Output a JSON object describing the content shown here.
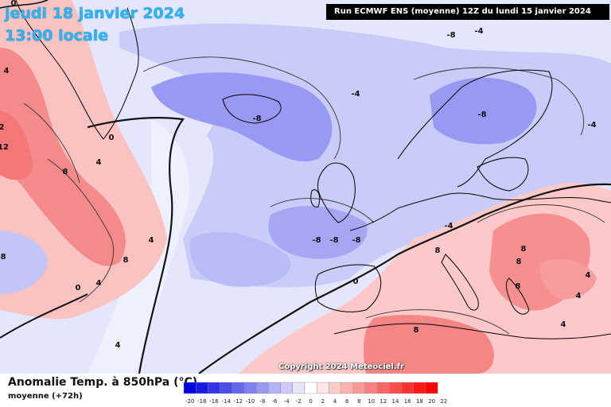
{
  "title": {
    "date": "jeudi 18 janvier 2024",
    "local_time": "13:00 locale"
  },
  "run_info": "Run ECMWF ENS (moyenne) 12Z du lundi 15 janvier 2024",
  "copyright": "Copyright 2024 Meteociel.fr",
  "legend": {
    "title": "Anomalie Temp. à 850hPa (°C)",
    "subtitle": "moyenne  (+72h)",
    "ticks": [
      "-20",
      "-18",
      "-16",
      "-14",
      "-12",
      "-10",
      "-8",
      "-6",
      "-4",
      "-2",
      "0",
      "2",
      "4",
      "6",
      "8",
      "10",
      "12",
      "14",
      "16",
      "18",
      "20",
      "22"
    ],
    "colors": [
      "#0000e0",
      "#1a1ae6",
      "#3333ea",
      "#4d4dee",
      "#6666f0",
      "#7f7ff2",
      "#9999f5",
      "#b3b3f8",
      "#ccccfa",
      "#e6e6fd",
      "#ffffff",
      "#ffe6e6",
      "#ffcccc",
      "#ffb3b3",
      "#ff9999",
      "#ff8080",
      "#ff6666",
      "#ff4d4d",
      "#ff3333",
      "#ff1a1a",
      "#ff0000"
    ]
  },
  "contour_labels": [
    "8",
    "4",
    "0",
    "4",
    "8",
    "4",
    "0",
    "-8",
    "-4",
    "-8",
    "-8",
    "-8",
    "-8",
    "-8",
    "-4",
    "-4",
    "0",
    "8",
    "8",
    "8",
    "8",
    "4",
    "4",
    "4",
    "8",
    "4",
    "0",
    "-4",
    "2",
    "12",
    "4",
    "-8"
  ],
  "colors": {
    "cold_dark": "#8a8cf0",
    "cold_light": "#c8caf8",
    "warm_dark": "#f06a6a",
    "warm_light": "#ffd4d4",
    "zero_line": "#111111",
    "title_text": "#29b6f6"
  }
}
